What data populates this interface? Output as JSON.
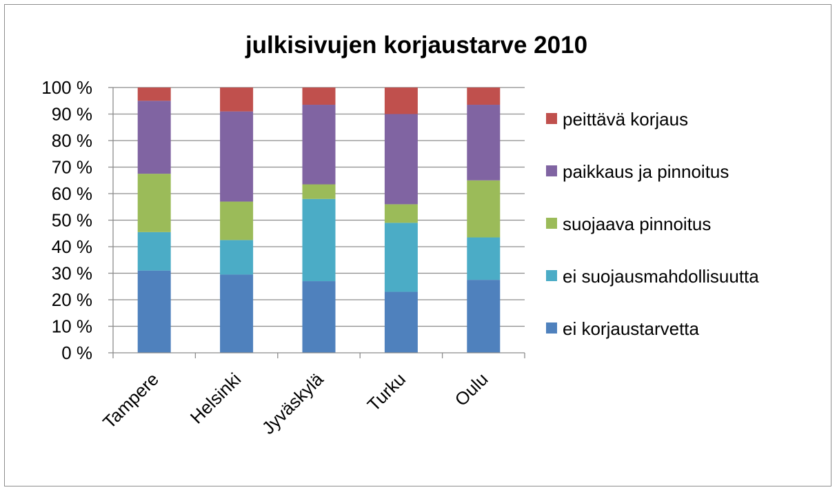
{
  "chart_data": {
    "type": "bar",
    "stacked": true,
    "percent": true,
    "title": "julkisivujen korjaustarve 2010",
    "xlabel": "",
    "ylabel": "",
    "ylim": [
      0,
      100
    ],
    "y_ticks": [
      0,
      10,
      20,
      30,
      40,
      50,
      60,
      70,
      80,
      90,
      100
    ],
    "y_tick_labels": [
      "0 %",
      "10 %",
      "20 %",
      "30 %",
      "40 %",
      "50 %",
      "60 %",
      "70 %",
      "80 %",
      "90 %",
      "100 %"
    ],
    "categories": [
      "Tampere",
      "Helsinki",
      "Jyväskylä",
      "Turku",
      "Oulu"
    ],
    "grid": true,
    "legend_position": "right",
    "series": [
      {
        "name": "ei korjaustarvetta",
        "color": "#4F81BD",
        "values": [
          31,
          29.5,
          27,
          23,
          27.5
        ]
      },
      {
        "name": "ei suojausmahdollisuutta",
        "color": "#4BACC6",
        "values": [
          14.5,
          13,
          31,
          26,
          16
        ]
      },
      {
        "name": "suojaava pinnoitus",
        "color": "#9BBB59",
        "values": [
          22,
          14.5,
          5.5,
          7,
          21.5
        ]
      },
      {
        "name": "paikkaus ja pinnoitus",
        "color": "#8064A2",
        "values": [
          27.5,
          34,
          30,
          34,
          28.5
        ]
      },
      {
        "name": "peittävä korjaus",
        "color": "#C0504D",
        "values": [
          5,
          9,
          6.5,
          10,
          6.5
        ]
      }
    ]
  }
}
